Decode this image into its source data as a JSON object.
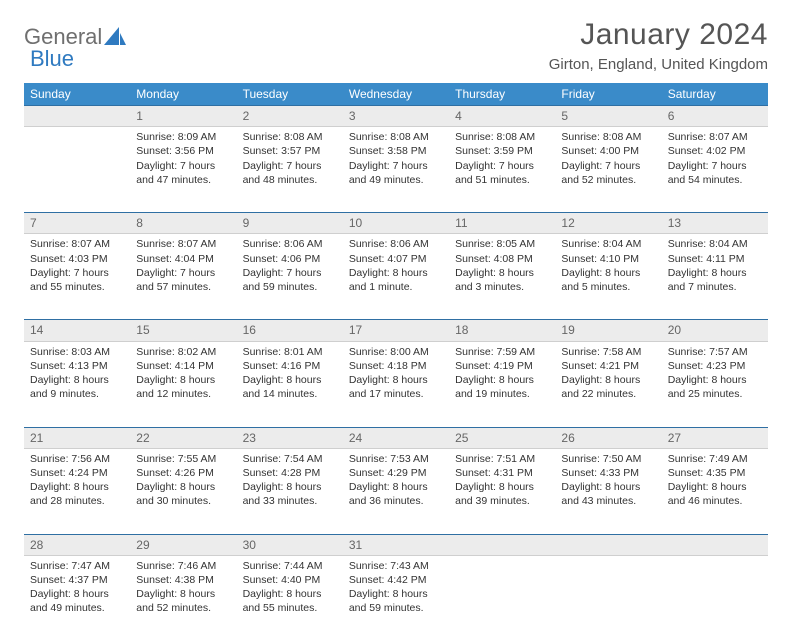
{
  "brand": {
    "word1": "General",
    "word2": "Blue"
  },
  "title": "January 2024",
  "location": "Girton, England, United Kingdom",
  "colors": {
    "header_bg": "#3a8bc9",
    "header_text": "#ffffff",
    "daynum_bg": "#ececec",
    "daynum_border_top": "#2f6fa3",
    "body_text": "#333333",
    "title_text": "#555555",
    "logo_gray": "#6f6f6f",
    "logo_blue": "#2f7ac0"
  },
  "typography": {
    "title_fontsize": 30,
    "location_fontsize": 15,
    "th_fontsize": 12,
    "cell_fontsize": 10.5,
    "logo_fontsize": 22
  },
  "weekdays": [
    "Sunday",
    "Monday",
    "Tuesday",
    "Wednesday",
    "Thursday",
    "Friday",
    "Saturday"
  ],
  "weeks": [
    {
      "nums": [
        "",
        "1",
        "2",
        "3",
        "4",
        "5",
        "6"
      ],
      "cells": [
        {
          "sunrise": "",
          "sunset": "",
          "daylight": ""
        },
        {
          "sunrise": "Sunrise: 8:09 AM",
          "sunset": "Sunset: 3:56 PM",
          "daylight": "Daylight: 7 hours and 47 minutes."
        },
        {
          "sunrise": "Sunrise: 8:08 AM",
          "sunset": "Sunset: 3:57 PM",
          "daylight": "Daylight: 7 hours and 48 minutes."
        },
        {
          "sunrise": "Sunrise: 8:08 AM",
          "sunset": "Sunset: 3:58 PM",
          "daylight": "Daylight: 7 hours and 49 minutes."
        },
        {
          "sunrise": "Sunrise: 8:08 AM",
          "sunset": "Sunset: 3:59 PM",
          "daylight": "Daylight: 7 hours and 51 minutes."
        },
        {
          "sunrise": "Sunrise: 8:08 AM",
          "sunset": "Sunset: 4:00 PM",
          "daylight": "Daylight: 7 hours and 52 minutes."
        },
        {
          "sunrise": "Sunrise: 8:07 AM",
          "sunset": "Sunset: 4:02 PM",
          "daylight": "Daylight: 7 hours and 54 minutes."
        }
      ]
    },
    {
      "nums": [
        "7",
        "8",
        "9",
        "10",
        "11",
        "12",
        "13"
      ],
      "cells": [
        {
          "sunrise": "Sunrise: 8:07 AM",
          "sunset": "Sunset: 4:03 PM",
          "daylight": "Daylight: 7 hours and 55 minutes."
        },
        {
          "sunrise": "Sunrise: 8:07 AM",
          "sunset": "Sunset: 4:04 PM",
          "daylight": "Daylight: 7 hours and 57 minutes."
        },
        {
          "sunrise": "Sunrise: 8:06 AM",
          "sunset": "Sunset: 4:06 PM",
          "daylight": "Daylight: 7 hours and 59 minutes."
        },
        {
          "sunrise": "Sunrise: 8:06 AM",
          "sunset": "Sunset: 4:07 PM",
          "daylight": "Daylight: 8 hours and 1 minute."
        },
        {
          "sunrise": "Sunrise: 8:05 AM",
          "sunset": "Sunset: 4:08 PM",
          "daylight": "Daylight: 8 hours and 3 minutes."
        },
        {
          "sunrise": "Sunrise: 8:04 AM",
          "sunset": "Sunset: 4:10 PM",
          "daylight": "Daylight: 8 hours and 5 minutes."
        },
        {
          "sunrise": "Sunrise: 8:04 AM",
          "sunset": "Sunset: 4:11 PM",
          "daylight": "Daylight: 8 hours and 7 minutes."
        }
      ]
    },
    {
      "nums": [
        "14",
        "15",
        "16",
        "17",
        "18",
        "19",
        "20"
      ],
      "cells": [
        {
          "sunrise": "Sunrise: 8:03 AM",
          "sunset": "Sunset: 4:13 PM",
          "daylight": "Daylight: 8 hours and 9 minutes."
        },
        {
          "sunrise": "Sunrise: 8:02 AM",
          "sunset": "Sunset: 4:14 PM",
          "daylight": "Daylight: 8 hours and 12 minutes."
        },
        {
          "sunrise": "Sunrise: 8:01 AM",
          "sunset": "Sunset: 4:16 PM",
          "daylight": "Daylight: 8 hours and 14 minutes."
        },
        {
          "sunrise": "Sunrise: 8:00 AM",
          "sunset": "Sunset: 4:18 PM",
          "daylight": "Daylight: 8 hours and 17 minutes."
        },
        {
          "sunrise": "Sunrise: 7:59 AM",
          "sunset": "Sunset: 4:19 PM",
          "daylight": "Daylight: 8 hours and 19 minutes."
        },
        {
          "sunrise": "Sunrise: 7:58 AM",
          "sunset": "Sunset: 4:21 PM",
          "daylight": "Daylight: 8 hours and 22 minutes."
        },
        {
          "sunrise": "Sunrise: 7:57 AM",
          "sunset": "Sunset: 4:23 PM",
          "daylight": "Daylight: 8 hours and 25 minutes."
        }
      ]
    },
    {
      "nums": [
        "21",
        "22",
        "23",
        "24",
        "25",
        "26",
        "27"
      ],
      "cells": [
        {
          "sunrise": "Sunrise: 7:56 AM",
          "sunset": "Sunset: 4:24 PM",
          "daylight": "Daylight: 8 hours and 28 minutes."
        },
        {
          "sunrise": "Sunrise: 7:55 AM",
          "sunset": "Sunset: 4:26 PM",
          "daylight": "Daylight: 8 hours and 30 minutes."
        },
        {
          "sunrise": "Sunrise: 7:54 AM",
          "sunset": "Sunset: 4:28 PM",
          "daylight": "Daylight: 8 hours and 33 minutes."
        },
        {
          "sunrise": "Sunrise: 7:53 AM",
          "sunset": "Sunset: 4:29 PM",
          "daylight": "Daylight: 8 hours and 36 minutes."
        },
        {
          "sunrise": "Sunrise: 7:51 AM",
          "sunset": "Sunset: 4:31 PM",
          "daylight": "Daylight: 8 hours and 39 minutes."
        },
        {
          "sunrise": "Sunrise: 7:50 AM",
          "sunset": "Sunset: 4:33 PM",
          "daylight": "Daylight: 8 hours and 43 minutes."
        },
        {
          "sunrise": "Sunrise: 7:49 AM",
          "sunset": "Sunset: 4:35 PM",
          "daylight": "Daylight: 8 hours and 46 minutes."
        }
      ]
    },
    {
      "nums": [
        "28",
        "29",
        "30",
        "31",
        "",
        "",
        ""
      ],
      "cells": [
        {
          "sunrise": "Sunrise: 7:47 AM",
          "sunset": "Sunset: 4:37 PM",
          "daylight": "Daylight: 8 hours and 49 minutes."
        },
        {
          "sunrise": "Sunrise: 7:46 AM",
          "sunset": "Sunset: 4:38 PM",
          "daylight": "Daylight: 8 hours and 52 minutes."
        },
        {
          "sunrise": "Sunrise: 7:44 AM",
          "sunset": "Sunset: 4:40 PM",
          "daylight": "Daylight: 8 hours and 55 minutes."
        },
        {
          "sunrise": "Sunrise: 7:43 AM",
          "sunset": "Sunset: 4:42 PM",
          "daylight": "Daylight: 8 hours and 59 minutes."
        },
        {
          "sunrise": "",
          "sunset": "",
          "daylight": ""
        },
        {
          "sunrise": "",
          "sunset": "",
          "daylight": ""
        },
        {
          "sunrise": "",
          "sunset": "",
          "daylight": ""
        }
      ]
    }
  ]
}
